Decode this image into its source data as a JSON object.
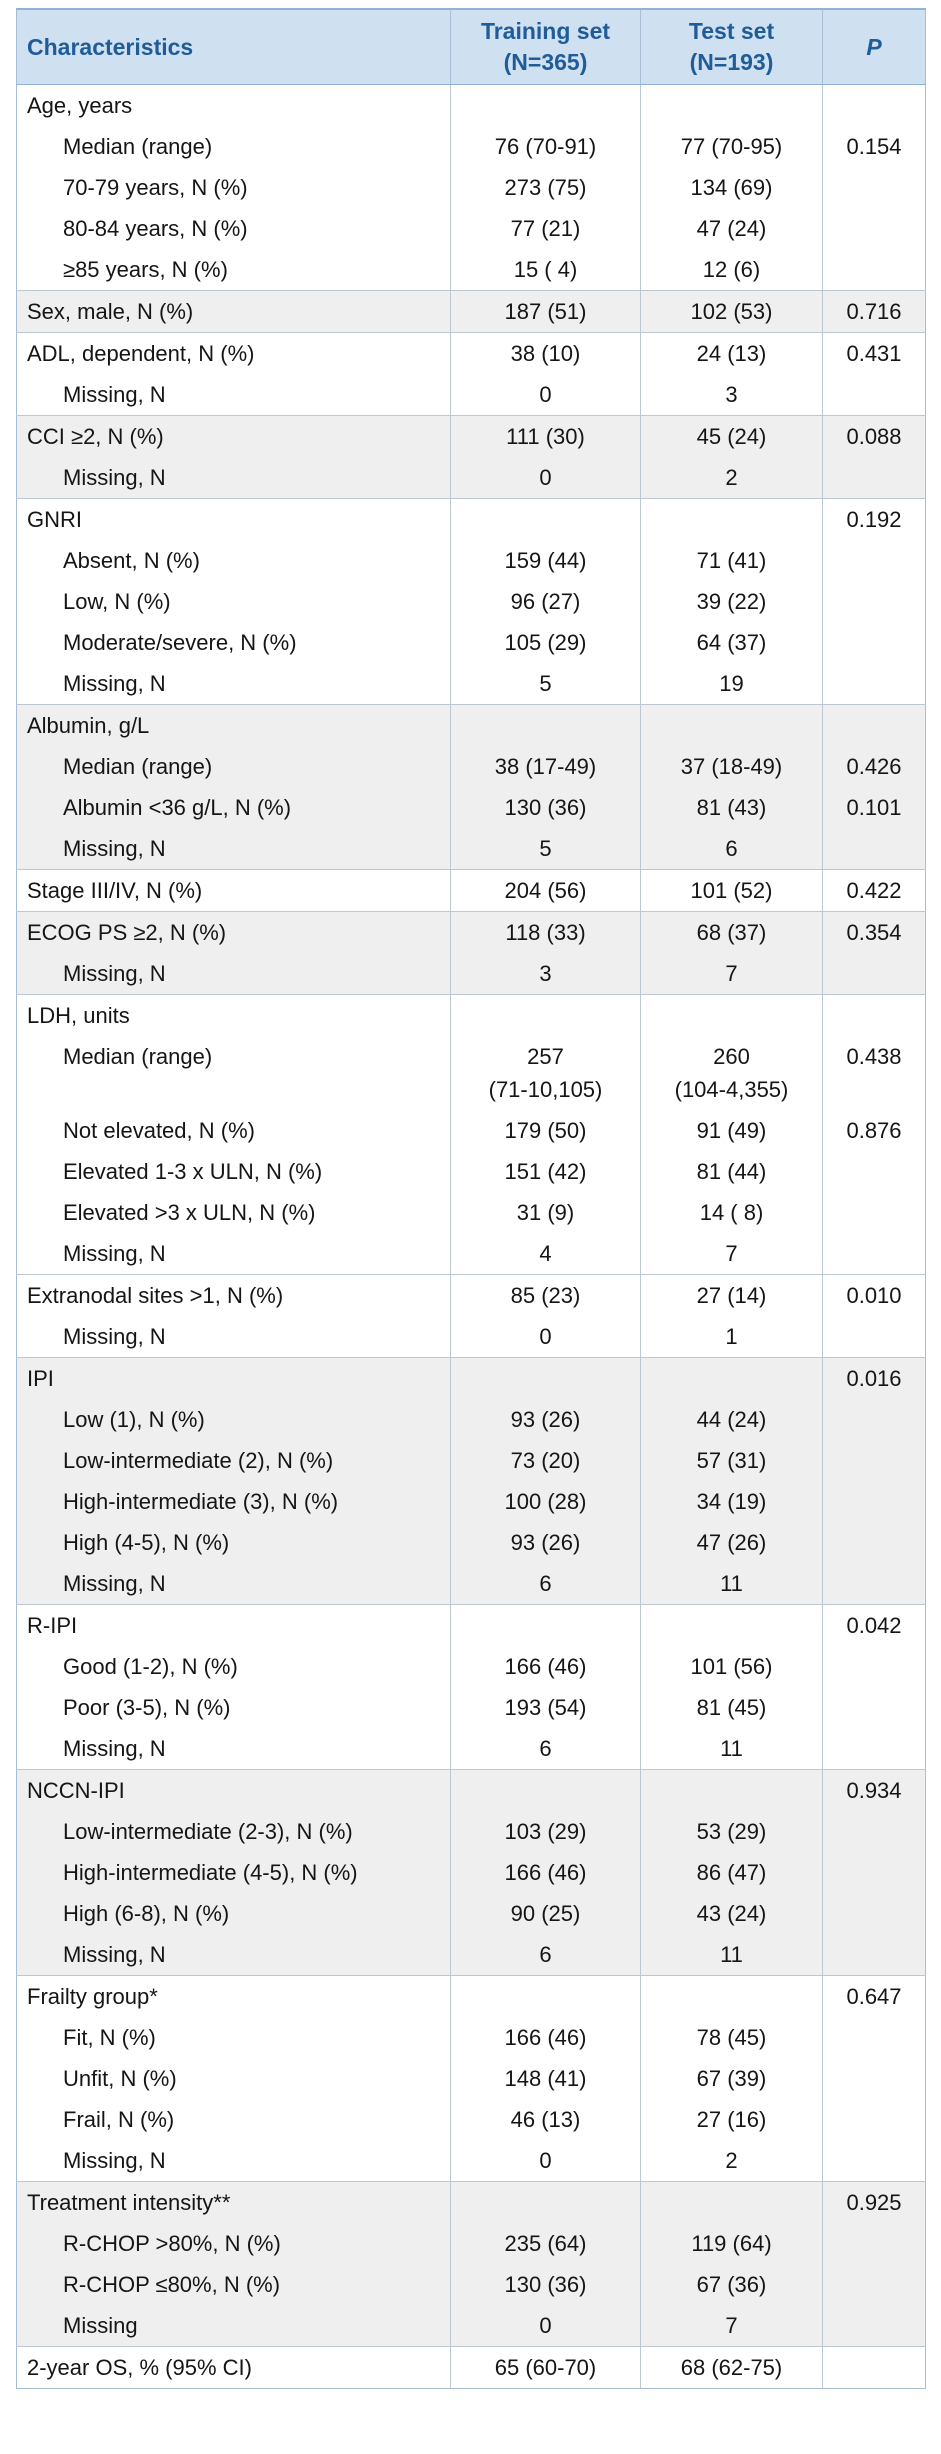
{
  "colors": {
    "header_bg": "#cfe0f1",
    "header_text": "#1f5c98",
    "shaded_row_bg": "#efefef",
    "inner_border": "#bdc7d2",
    "outer_border": "#a6bdd3"
  },
  "table": {
    "header": {
      "characteristics": "Characteristics",
      "training": "Training set\n(N=365)",
      "test": "Test set\n(N=193)",
      "p": "P"
    },
    "sections": [
      {
        "shaded": false,
        "rows": [
          {
            "label": "Age, years",
            "indent": false,
            "training": "",
            "test": "",
            "p": ""
          },
          {
            "label": "Median (range)",
            "indent": true,
            "training": "76 (70-91)",
            "test": "77 (70-95)",
            "p": "0.154"
          },
          {
            "label": "70-79 years, N (%)",
            "indent": true,
            "training": "273 (75)",
            "test": "134 (69)",
            "p": ""
          },
          {
            "label": "80-84 years, N (%)",
            "indent": true,
            "training": "77 (21)",
            "test": "47 (24)",
            "p": ""
          },
          {
            "label": "≥85 years, N (%)",
            "indent": true,
            "training": "15 ( 4)",
            "test": "12 (6)",
            "p": ""
          }
        ]
      },
      {
        "shaded": true,
        "rows": [
          {
            "label": "Sex, male, N (%)",
            "indent": false,
            "training": "187 (51)",
            "test": "102 (53)",
            "p": "0.716"
          }
        ]
      },
      {
        "shaded": false,
        "rows": [
          {
            "label": "ADL, dependent, N (%)",
            "indent": false,
            "training": "38 (10)",
            "test": "24 (13)",
            "p": "0.431"
          },
          {
            "label": "Missing, N",
            "indent": true,
            "training": "0",
            "test": "3",
            "p": ""
          }
        ]
      },
      {
        "shaded": true,
        "rows": [
          {
            "label": "CCI ≥2, N (%)",
            "indent": false,
            "training": "111 (30)",
            "test": "45 (24)",
            "p": "0.088"
          },
          {
            "label": "Missing, N",
            "indent": true,
            "training": "0",
            "test": "2",
            "p": ""
          }
        ]
      },
      {
        "shaded": false,
        "rows": [
          {
            "label": "GNRI",
            "indent": false,
            "training": "",
            "test": "",
            "p": "0.192"
          },
          {
            "label": "Absent, N (%)",
            "indent": true,
            "training": "159 (44)",
            "test": "71 (41)",
            "p": ""
          },
          {
            "label": "Low, N (%)",
            "indent": true,
            "training": "96 (27)",
            "test": "39 (22)",
            "p": ""
          },
          {
            "label": "Moderate/severe, N (%)",
            "indent": true,
            "training": "105 (29)",
            "test": "64 (37)",
            "p": ""
          },
          {
            "label": "Missing, N",
            "indent": true,
            "training": "5",
            "test": "19",
            "p": ""
          }
        ]
      },
      {
        "shaded": true,
        "rows": [
          {
            "label": "Albumin, g/L",
            "indent": false,
            "training": "",
            "test": "",
            "p": ""
          },
          {
            "label": "Median (range)",
            "indent": true,
            "training": "38 (17-49)",
            "test": "37 (18-49)",
            "p": "0.426"
          },
          {
            "label": "Albumin <36 g/L, N (%)",
            "indent": true,
            "training": "130 (36)",
            "test": "81 (43)",
            "p": "0.101"
          },
          {
            "label": "Missing, N",
            "indent": true,
            "training": "5",
            "test": "6",
            "p": ""
          }
        ]
      },
      {
        "shaded": false,
        "rows": [
          {
            "label": "Stage III/IV, N (%)",
            "indent": false,
            "training": "204 (56)",
            "test": "101 (52)",
            "p": "0.422"
          }
        ]
      },
      {
        "shaded": true,
        "rows": [
          {
            "label": "ECOG PS ≥2, N (%)",
            "indent": false,
            "training": "118 (33)",
            "test": "68 (37)",
            "p": "0.354"
          },
          {
            "label": "Missing, N",
            "indent": true,
            "training": "3",
            "test": "7",
            "p": ""
          }
        ]
      },
      {
        "shaded": false,
        "rows": [
          {
            "label": "LDH, units",
            "indent": false,
            "training": "",
            "test": "",
            "p": ""
          },
          {
            "label": "Median (range)",
            "indent": true,
            "training": "257\n(71-10,105)",
            "test": "260\n(104-4,355)",
            "p": "0.438"
          },
          {
            "label": "Not elevated, N (%)",
            "indent": true,
            "training": "179 (50)",
            "test": "91 (49)",
            "p": "0.876"
          },
          {
            "label": "Elevated 1-3 x ULN, N (%)",
            "indent": true,
            "training": "151 (42)",
            "test": "81 (44)",
            "p": ""
          },
          {
            "label": "Elevated >3 x ULN, N (%)",
            "indent": true,
            "training": "31 (9)",
            "test": "14 ( 8)",
            "p": ""
          },
          {
            "label": "Missing, N",
            "indent": true,
            "training": "4",
            "test": "7",
            "p": ""
          }
        ]
      },
      {
        "shaded": false,
        "rows": [
          {
            "label": "Extranodal sites >1, N (%)",
            "indent": false,
            "training": "85 (23)",
            "test": "27 (14)",
            "p": "0.010"
          },
          {
            "label": "Missing, N",
            "indent": true,
            "training": "0",
            "test": "1",
            "p": ""
          }
        ]
      },
      {
        "shaded": true,
        "rows": [
          {
            "label": "IPI",
            "indent": false,
            "training": "",
            "test": "",
            "p": "0.016"
          },
          {
            "label": "Low (1), N (%)",
            "indent": true,
            "training": "93 (26)",
            "test": "44 (24)",
            "p": ""
          },
          {
            "label": "Low-intermediate (2), N (%)",
            "indent": true,
            "training": "73 (20)",
            "test": "57 (31)",
            "p": ""
          },
          {
            "label": "High-intermediate (3), N (%)",
            "indent": true,
            "training": "100 (28)",
            "test": "34 (19)",
            "p": ""
          },
          {
            "label": "High (4-5), N (%)",
            "indent": true,
            "training": "93 (26)",
            "test": "47 (26)",
            "p": ""
          },
          {
            "label": "Missing, N",
            "indent": true,
            "training": "6",
            "test": "11",
            "p": ""
          }
        ]
      },
      {
        "shaded": false,
        "rows": [
          {
            "label": "R-IPI",
            "indent": false,
            "training": "",
            "test": "",
            "p": "0.042"
          },
          {
            "label": "Good (1-2), N (%)",
            "indent": true,
            "training": "166 (46)",
            "test": "101 (56)",
            "p": ""
          },
          {
            "label": "Poor (3-5), N (%)",
            "indent": true,
            "training": "193 (54)",
            "test": "81 (45)",
            "p": ""
          },
          {
            "label": "Missing, N",
            "indent": true,
            "training": "6",
            "test": "11",
            "p": ""
          }
        ]
      },
      {
        "shaded": true,
        "rows": [
          {
            "label": "NCCN-IPI",
            "indent": false,
            "training": "",
            "test": "",
            "p": "0.934"
          },
          {
            "label": "Low-intermediate (2-3), N (%)",
            "indent": true,
            "training": "103 (29)",
            "test": "53 (29)",
            "p": ""
          },
          {
            "label": "High-intermediate (4-5), N (%)",
            "indent": true,
            "training": "166 (46)",
            "test": "86 (47)",
            "p": ""
          },
          {
            "label": "High (6-8), N (%)",
            "indent": true,
            "training": "90 (25)",
            "test": "43 (24)",
            "p": ""
          },
          {
            "label": "Missing, N",
            "indent": true,
            "training": "6",
            "test": "11",
            "p": ""
          }
        ]
      },
      {
        "shaded": false,
        "rows": [
          {
            "label": "Frailty group*",
            "indent": false,
            "training": "",
            "test": "",
            "p": "0.647"
          },
          {
            "label": "Fit, N (%)",
            "indent": true,
            "training": "166 (46)",
            "test": "78 (45)",
            "p": ""
          },
          {
            "label": "Unfit, N (%)",
            "indent": true,
            "training": "148 (41)",
            "test": "67 (39)",
            "p": ""
          },
          {
            "label": "Frail, N (%)",
            "indent": true,
            "training": "46 (13)",
            "test": "27 (16)",
            "p": ""
          },
          {
            "label": "Missing, N",
            "indent": true,
            "training": "0",
            "test": "2",
            "p": ""
          }
        ]
      },
      {
        "shaded": true,
        "rows": [
          {
            "label": "Treatment intensity**",
            "indent": false,
            "training": "",
            "test": "",
            "p": "0.925"
          },
          {
            "label": "R-CHOP >80%, N (%)",
            "indent": true,
            "training": "235 (64)",
            "test": "119 (64)",
            "p": ""
          },
          {
            "label": "R-CHOP ≤80%, N (%)",
            "indent": true,
            "training": "130 (36)",
            "test": "67 (36)",
            "p": ""
          },
          {
            "label": "Missing",
            "indent": true,
            "training": "0",
            "test": "7",
            "p": ""
          }
        ]
      },
      {
        "shaded": false,
        "rows": [
          {
            "label": "2-year OS, % (95% CI)",
            "indent": false,
            "training": "65 (60-70)",
            "test": "68 (62-75)",
            "p": ""
          }
        ]
      }
    ]
  }
}
